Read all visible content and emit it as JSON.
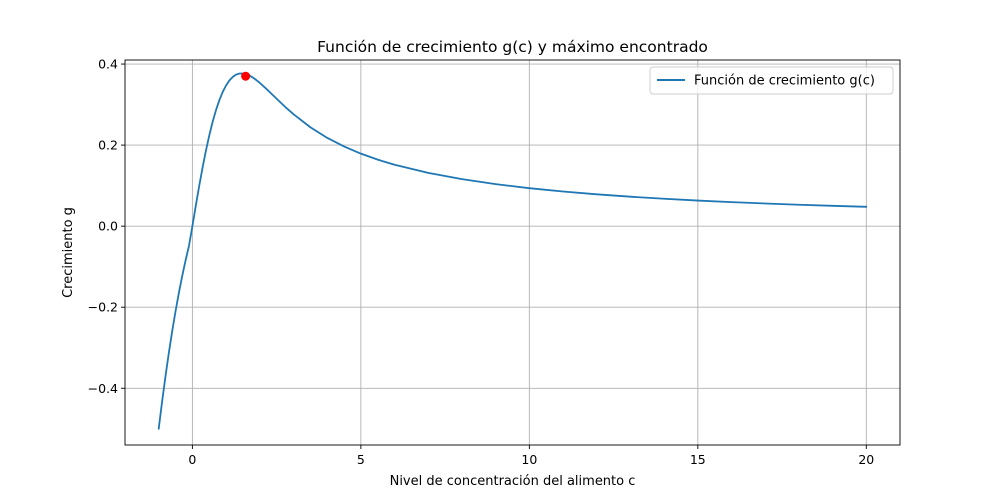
{
  "chart_data": {
    "type": "line",
    "title": "Función de crecimiento g(c) y máximo encontrado",
    "xlabel": "Nivel de concentración del alimento c",
    "ylabel": "Crecimiento g",
    "xlim": [
      -2,
      21
    ],
    "ylim": [
      -0.54,
      0.41
    ],
    "xticks": [
      0,
      5,
      10,
      15,
      20
    ],
    "xtick_labels": [
      "0",
      "5",
      "10",
      "15",
      "20"
    ],
    "yticks": [
      -0.4,
      -0.2,
      0.0,
      0.2,
      0.4
    ],
    "ytick_labels": [
      "−0.4",
      "−0.2",
      "0.0",
      "0.2",
      "0.4"
    ],
    "grid": true,
    "legend_position": "top-right",
    "series": [
      {
        "name": "Función de crecimiento g(c)",
        "color": "#1f77b4",
        "x": [
          -1.0,
          -0.9,
          -0.8,
          -0.7,
          -0.6,
          -0.5,
          -0.4,
          -0.3,
          -0.2,
          -0.1,
          0.0,
          0.1,
          0.2,
          0.3,
          0.4,
          0.5,
          0.6,
          0.7,
          0.8,
          0.9,
          1.0,
          1.1,
          1.2,
          1.3,
          1.4,
          1.5,
          1.5811,
          1.6,
          1.7,
          1.8,
          1.9,
          2.0,
          2.25,
          2.5,
          2.75,
          3.0,
          3.5,
          4.0,
          4.5,
          5.0,
          5.5,
          6.0,
          7.0,
          8.0,
          9.0,
          10.0,
          11.0,
          12.0,
          13.0,
          14.0,
          15.0,
          16.0,
          17.0,
          18.0,
          19.0,
          20.0
        ],
        "y": [
          -0.5,
          -0.4337,
          -0.3714,
          -0.3134,
          -0.2595,
          -0.2099,
          -0.1642,
          -0.1222,
          -0.0836,
          -0.0481,
          0.0,
          0.0499,
          0.0981,
          0.1436,
          0.1856,
          0.2236,
          0.2572,
          0.2863,
          0.3109,
          0.3312,
          0.3474,
          0.3597,
          0.3685,
          0.3741,
          0.3767,
          0.3767,
          0.3755,
          0.3749,
          0.3713,
          0.3664,
          0.3603,
          0.3536,
          0.3345,
          0.3143,
          0.2946,
          0.2763,
          0.2441,
          0.2179,
          0.1966,
          0.1789,
          0.1641,
          0.1515,
          0.1314,
          0.116,
          0.1037,
          0.0937,
          0.0855,
          0.0786,
          0.0727,
          0.0676,
          0.0632,
          0.0593,
          0.0559,
          0.0529,
          0.0502,
          0.0477
        ]
      }
    ],
    "marker": {
      "x": 1.58,
      "y": 0.37,
      "color": "#ff0000"
    }
  }
}
